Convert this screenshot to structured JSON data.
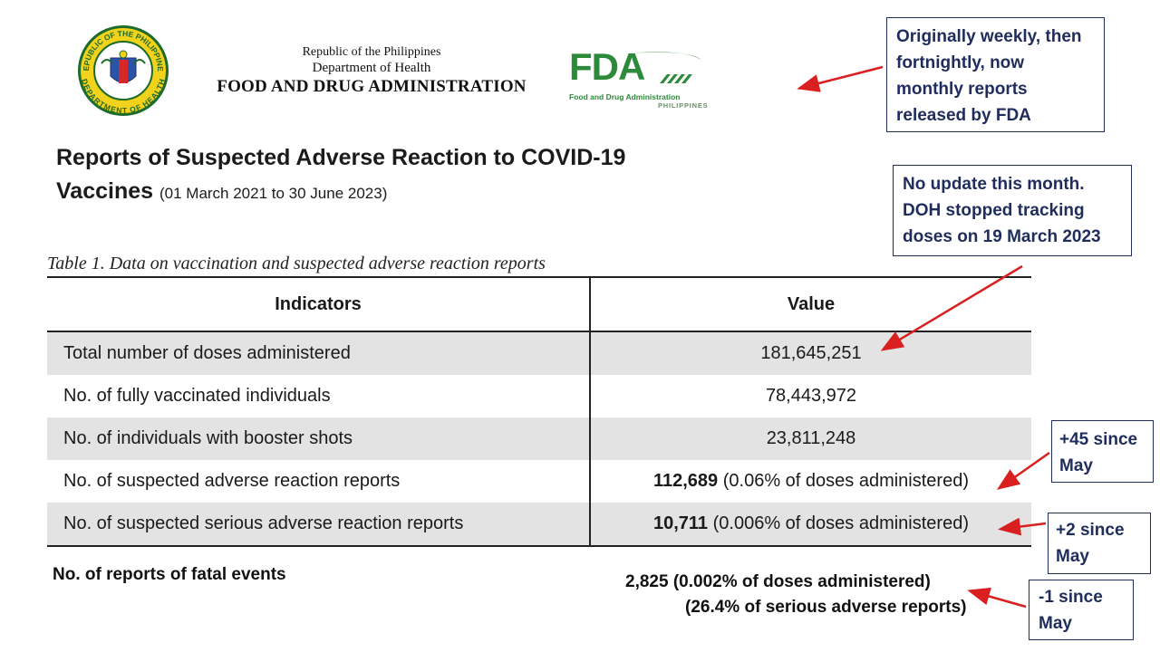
{
  "header": {
    "line1": "Republic of the Philippines",
    "line2": "Department of Health",
    "line3": "FOOD AND DRUG ADMINISTRATION"
  },
  "seal": {
    "top_text": "REPUBLIC OF THE PHILIPPINES",
    "bottom_text": "DEPARTMENT OF HEALTH"
  },
  "fda_logo": {
    "text": "FDA",
    "subtitle": "Food and Drug Administration",
    "country": "PHILIPPINES"
  },
  "title": {
    "line1": "Reports of Suspected Adverse Reaction to COVID-19",
    "line2": "Vaccines",
    "period": "(01 March 2021 to 30 June 2023)"
  },
  "table": {
    "caption": "Table 1. Data on vaccination and suspected adverse reaction reports",
    "headers": [
      "Indicators",
      "Value"
    ],
    "rows": [
      {
        "indicator": "Total number of doses administered",
        "value_bold": "",
        "value": "181,645,251"
      },
      {
        "indicator": "No. of fully vaccinated individuals",
        "value_bold": "",
        "value": "78,443,972"
      },
      {
        "indicator": "No. of individuals with booster shots",
        "value_bold": "",
        "value": "23,811,248"
      },
      {
        "indicator": "No. of suspected adverse reaction reports",
        "value_bold": "112,689",
        "value": " (0.06% of doses administered)"
      },
      {
        "indicator": "No. of suspected serious adverse reaction reports",
        "value_bold": "10,711",
        "value": " (0.006% of doses administered)"
      }
    ]
  },
  "fatal": {
    "label": "No. of reports of fatal events",
    "value_line1": "2,825 (0.002% of doses administered)",
    "value_line2": "(26.4% of serious adverse reports)"
  },
  "annotations": {
    "note1": "Originally weekly, then fortnightly, now monthly reports released by FDA",
    "note2": "No update this month. DOH stopped tracking doses on 19 March 2023",
    "note3": "+45 since May",
    "note4": "+2 since May",
    "note5": "-1 since May"
  },
  "colors": {
    "annotation_text": "#1f2d5c",
    "arrow": "#d91f1f",
    "fda_green": "#2d8a3a",
    "row_shade": "#e3e3e3"
  }
}
